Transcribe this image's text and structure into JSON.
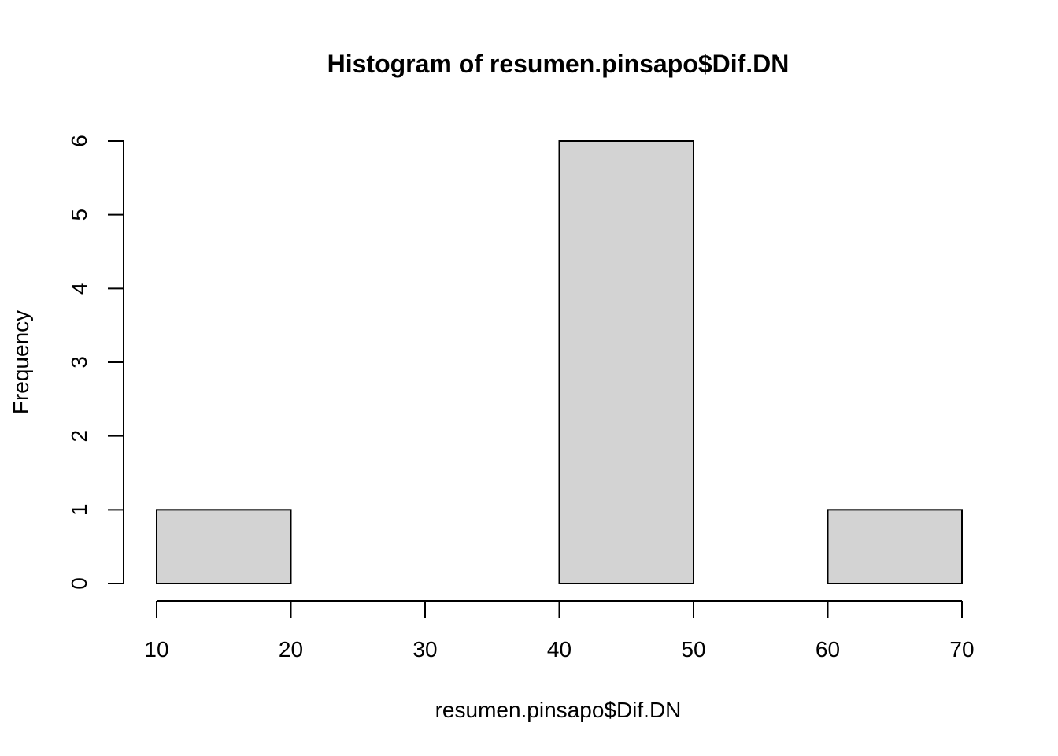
{
  "chart_data": {
    "type": "bar",
    "title": "Histogram of resumen.pinsapo$Dif.DN",
    "xlabel": "resumen.pinsapo$Dif.DN",
    "ylabel": "Frequency",
    "bins": [
      {
        "from": 10,
        "to": 20,
        "count": 1
      },
      {
        "from": 20,
        "to": 30,
        "count": 0
      },
      {
        "from": 30,
        "to": 40,
        "count": 0
      },
      {
        "from": 40,
        "to": 50,
        "count": 6
      },
      {
        "from": 50,
        "to": 60,
        "count": 0
      },
      {
        "from": 60,
        "to": 70,
        "count": 1
      }
    ],
    "xlim": [
      10,
      70
    ],
    "ylim": [
      0,
      6
    ],
    "x_ticks": [
      "10",
      "20",
      "30",
      "40",
      "50",
      "60",
      "70"
    ],
    "y_ticks": [
      "0",
      "1",
      "2",
      "3",
      "4",
      "5",
      "6"
    ],
    "bar_fill": "#d3d3d3",
    "bar_stroke": "#000000",
    "grid": false,
    "legend": "none"
  }
}
